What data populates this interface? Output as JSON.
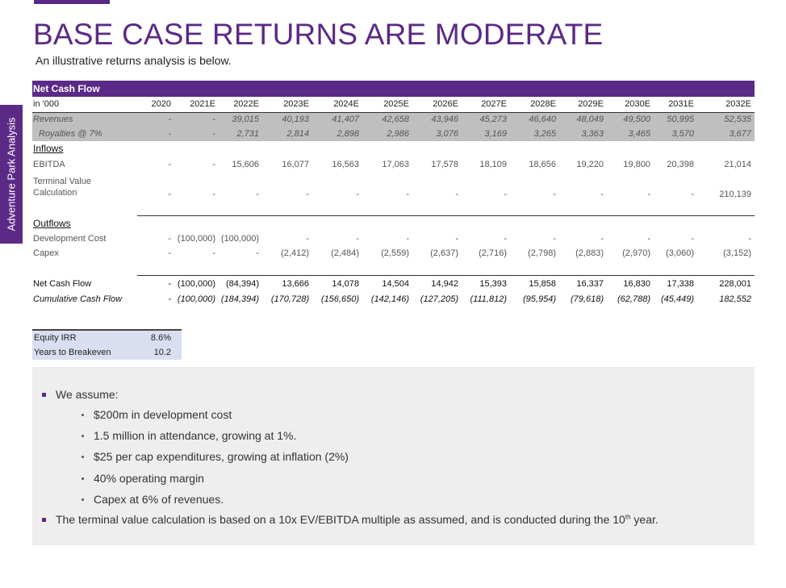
{
  "header": {
    "title": "BASE CASE RETURNS ARE MODERATE",
    "subtitle": "An illustrative returns analysis is below."
  },
  "side_tab": "Adventure Park Analysis",
  "table": {
    "section_title": "Net Cash Flow",
    "unit_label": "in '000",
    "years": [
      "2020",
      "2021E",
      "2022E",
      "2023E",
      "2024E",
      "2025E",
      "2026E",
      "2027E",
      "2028E",
      "2029E",
      "2030E",
      "2031E",
      "2032E"
    ],
    "revenues": {
      "label": "Revenues",
      "values": [
        "-",
        "-",
        "39,015",
        "40,193",
        "41,407",
        "42,658",
        "43,946",
        "45,273",
        "46,640",
        "48,049",
        "49,500",
        "50,995",
        "52,535"
      ]
    },
    "royalties": {
      "label": "Royalties @ 7%",
      "values": [
        "-",
        "-",
        "2,731",
        "2,814",
        "2,898",
        "2,986",
        "3,076",
        "3,169",
        "3,265",
        "3,363",
        "3,465",
        "3,570",
        "3,677"
      ]
    },
    "inflows_label": "Inflows",
    "ebitda": {
      "label": "EBITDA",
      "values": [
        "-",
        "-",
        "15,606",
        "16,077",
        "16,563",
        "17,063",
        "17,578",
        "18,109",
        "18,656",
        "19,220",
        "19,800",
        "20,398",
        "21,014"
      ]
    },
    "terminal_value": {
      "label_line1": "Terminal Value",
      "label_line2": "Calculation",
      "values": [
        "-",
        "-",
        "-",
        "-",
        "-",
        "-",
        "-",
        "-",
        "-",
        "-",
        "-",
        "-",
        "210,139"
      ]
    },
    "outflows_label": "Outflows",
    "dev_cost": {
      "label": "Development Cost",
      "values": [
        "-",
        "(100,000)",
        "(100,000)",
        "-",
        "-",
        "-",
        "-",
        "-",
        "-",
        "-",
        "-",
        "-",
        "-"
      ]
    },
    "capex": {
      "label": "Capex",
      "values": [
        "-",
        "-",
        "-",
        "(2,412)",
        "(2,484)",
        "(2,559)",
        "(2,637)",
        "(2,716)",
        "(2,798)",
        "(2,883)",
        "(2,970)",
        "(3,060)",
        "(3,152)"
      ]
    },
    "net_cash_flow": {
      "label": "Net Cash Flow",
      "values": [
        "-",
        "(100,000)",
        "(84,394)",
        "13,666",
        "14,078",
        "14,504",
        "14,942",
        "15,393",
        "15,858",
        "16,337",
        "16,830",
        "17,338",
        "228,001"
      ]
    },
    "cumulative": {
      "label": "Cumulative Cash Flow",
      "values": [
        "-",
        "(100,000)",
        "(184,394)",
        "(170,728)",
        "(156,650)",
        "(142,146)",
        "(127,205)",
        "(111,812)",
        "(95,954)",
        "(79,618)",
        "(62,788)",
        "(45,449)",
        "182,552"
      ]
    }
  },
  "summary": {
    "irr_label": "Equity IRR",
    "irr_value": "8.6%",
    "breakeven_label": "Years to Breakeven",
    "breakeven_value": "10.2"
  },
  "notes": {
    "assume": "We assume:",
    "items": [
      "$200m in development cost",
      "1.5 million in attendance, growing at 1%.",
      "$25 per cap expenditures, growing at inflation (2%)",
      "40% operating margin",
      "Capex at 6% of revenues."
    ],
    "terminal_text": "The terminal value calculation is based on a 10x EV/EBITDA multiple as assumed, and is conducted during the 10",
    "terminal_sup": "th",
    "terminal_end": " year."
  },
  "colors": {
    "accent": "#5b2a86",
    "grey_row": "#bfbfbf",
    "summary_bg": "#d9dff0",
    "notes_bg": "#eeeeee"
  }
}
